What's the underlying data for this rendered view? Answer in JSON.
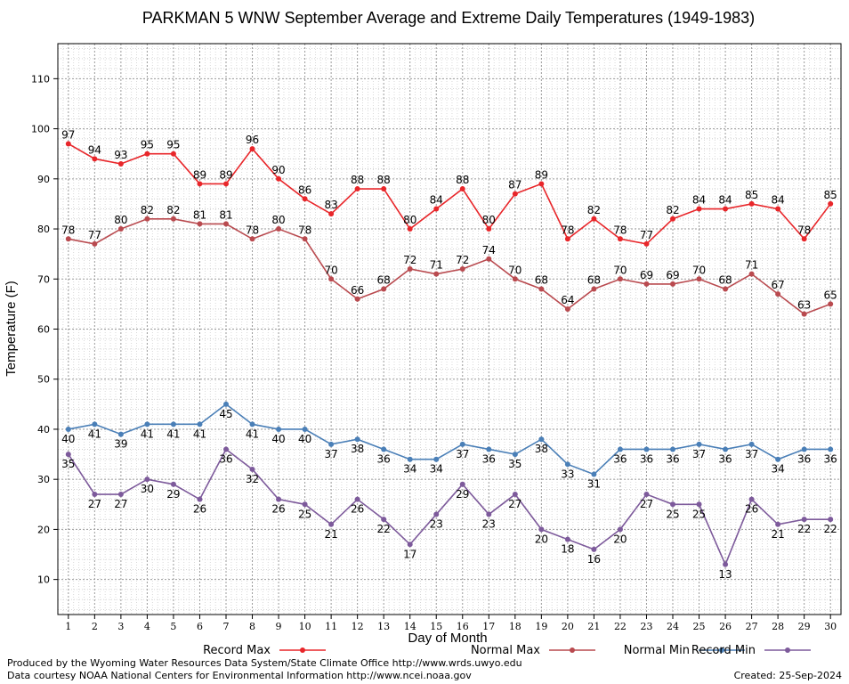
{
  "chart_data": {
    "type": "line",
    "title": "PARKMAN 5 WNW September Average and Extreme Daily Temperatures (1949-1983)",
    "xlabel": "Day of Month",
    "ylabel": "Temperature (F)",
    "xlim": [
      0.6,
      30.4
    ],
    "ylim": [
      3,
      117
    ],
    "yticks": [
      10,
      20,
      30,
      40,
      50,
      60,
      70,
      80,
      90,
      100,
      110
    ],
    "x": [
      1,
      2,
      3,
      4,
      5,
      6,
      7,
      8,
      9,
      10,
      11,
      12,
      13,
      14,
      15,
      16,
      17,
      18,
      19,
      20,
      21,
      22,
      23,
      24,
      25,
      26,
      27,
      28,
      29,
      30
    ],
    "grid": true,
    "legend_position": "bottom",
    "series": [
      {
        "name": "Record Max",
        "color": "#e8262a",
        "label_position": "above",
        "values": [
          97,
          94,
          93,
          95,
          95,
          89,
          89,
          96,
          90,
          86,
          83,
          88,
          88,
          80,
          84,
          88,
          80,
          87,
          89,
          78,
          82,
          78,
          77,
          82,
          84,
          84,
          85,
          84,
          78,
          85
        ]
      },
      {
        "name": "Normal Max",
        "color": "#b94a4f",
        "label_position": "above",
        "values": [
          78,
          77,
          80,
          82,
          82,
          81,
          81,
          78,
          80,
          78,
          70,
          66,
          68,
          72,
          71,
          72,
          74,
          70,
          68,
          64,
          68,
          70,
          69,
          69,
          70,
          68,
          71,
          67,
          63,
          65
        ]
      },
      {
        "name": "Normal Min",
        "color": "#4a7fb7",
        "label_position": "below",
        "values": [
          40,
          41,
          39,
          41,
          41,
          41,
          45,
          41,
          40,
          40,
          37,
          38,
          36,
          34,
          34,
          37,
          36,
          35,
          38,
          33,
          31,
          36,
          36,
          36,
          37,
          36,
          37,
          34,
          36,
          36
        ]
      },
      {
        "name": "Record Min",
        "color": "#7d5a9b",
        "label_position": "below",
        "values": [
          35,
          27,
          27,
          30,
          29,
          26,
          36,
          32,
          26,
          25,
          21,
          26,
          22,
          17,
          23,
          29,
          23,
          27,
          20,
          18,
          16,
          20,
          27,
          25,
          25,
          13,
          26,
          21,
          22,
          22
        ]
      }
    ]
  },
  "footer": {
    "credit_line1": "Produced by the Wyoming Water Resources Data System/State Climate Office http://www.wrds.uwyo.edu",
    "credit_line2": "Data courtesy NOAA National Centers for Environmental Information http://www.ncei.noaa.gov",
    "created": "Created:  25-Sep-2024"
  }
}
